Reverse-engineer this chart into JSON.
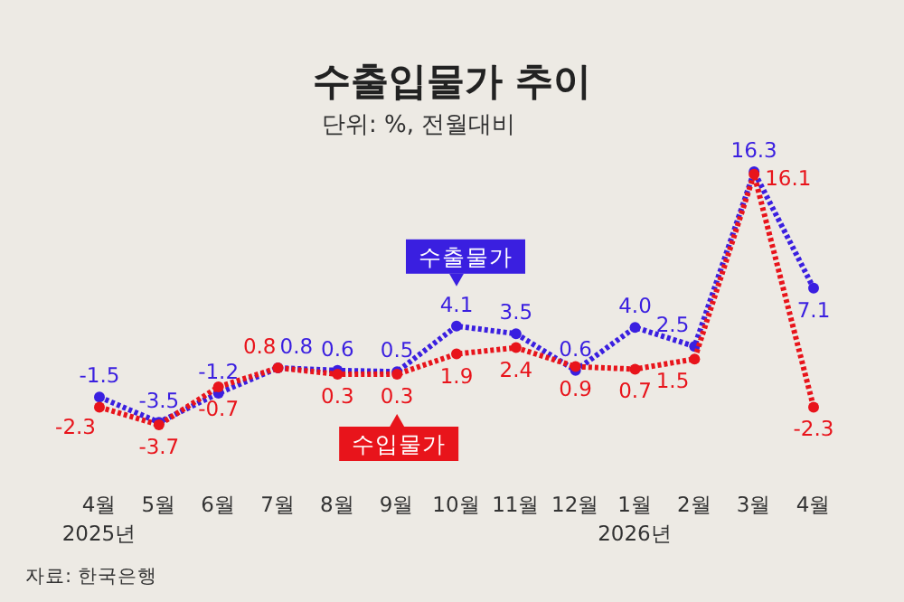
{
  "chart_data": {
    "type": "line",
    "title": "수출입물가 추이",
    "subtitle": "단위: %, 전월대비",
    "categories": [
      "4월\n2025년",
      "5월",
      "6월",
      "7월",
      "8월",
      "9월",
      "10월",
      "11월",
      "12월",
      "1월\n2026년",
      "2월",
      "3월",
      "4월"
    ],
    "series": [
      {
        "name": "수출물가",
        "color": "#3a1fe0",
        "values": [
          -1.5,
          -3.5,
          -1.2,
          0.8,
          0.6,
          0.5,
          4.1,
          3.5,
          0.6,
          4.0,
          2.5,
          16.3,
          7.1
        ],
        "value_labels": [
          "-1.5",
          "-3.5",
          "-1.2",
          "0.8",
          "0.6",
          "0.5",
          "4.1",
          "3.5",
          "0.6",
          "4.0",
          "2.5",
          "16.3",
          "7.1"
        ]
      },
      {
        "name": "수입물가",
        "color": "#e8141b",
        "values": [
          -2.3,
          -3.7,
          -0.7,
          0.8,
          0.3,
          0.3,
          1.9,
          2.4,
          0.9,
          0.7,
          1.5,
          16.1,
          -2.3
        ],
        "value_labels": [
          "-2.3",
          "-3.7",
          "-0.7",
          "0.8",
          "0.3",
          "0.3",
          "1.9",
          "2.4",
          "0.9",
          "0.7",
          "1.5",
          "16.1",
          "-2.3"
        ]
      }
    ],
    "marker": "circle",
    "line_style": "dotted",
    "annotations": [
      "자료: 한국은행"
    ]
  }
}
